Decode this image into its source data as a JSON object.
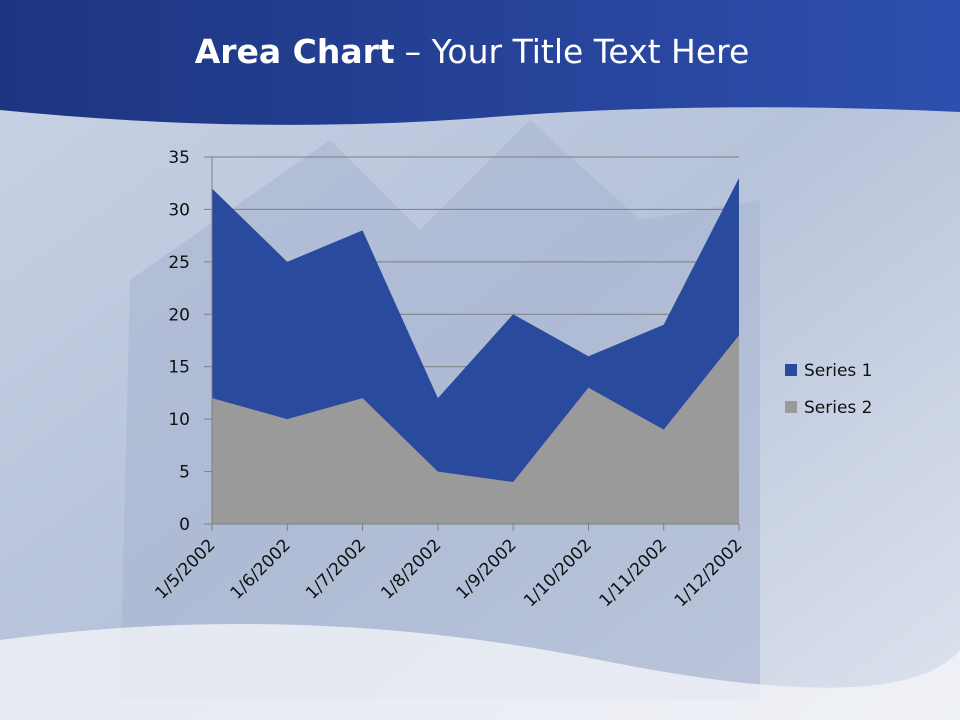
{
  "slide": {
    "title_bold": "Area Chart",
    "title_rest": "– Your Title Text Here"
  },
  "chart_data": {
    "type": "area",
    "categories": [
      "1/5/2002",
      "1/6/2002",
      "1/7/2002",
      "1/8/2002",
      "1/9/2002",
      "1/10/2002",
      "1/11/2002",
      "1/12/2002"
    ],
    "series": [
      {
        "name": "Series 1",
        "color": "#2a4a9e",
        "values": [
          32,
          25,
          28,
          12,
          20,
          16,
          19,
          33
        ]
      },
      {
        "name": "Series 2",
        "color": "#9a9a9a",
        "values": [
          12,
          10,
          12,
          5,
          4,
          13,
          9,
          18
        ]
      }
    ],
    "ylim": [
      0,
      35
    ],
    "yticks": [
      0,
      5,
      10,
      15,
      20,
      25,
      30,
      35
    ],
    "grid": true,
    "legend": "right"
  }
}
